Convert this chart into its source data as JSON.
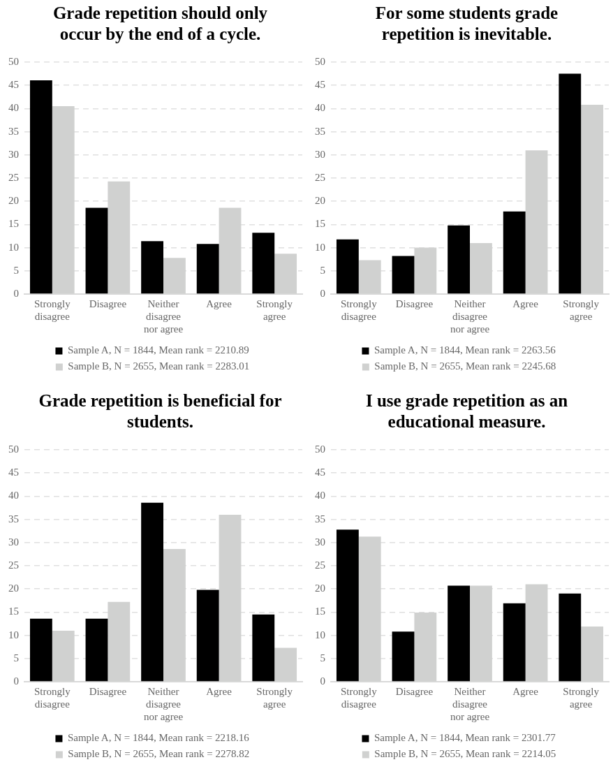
{
  "chart_data": [
    {
      "type": "bar",
      "title": "Grade repetition should only occur by the end of a cycle.",
      "categories": [
        "Strongly disagree",
        "Disagree",
        "Neither disagree nor agree",
        "Agree",
        "Strongly agree"
      ],
      "series": [
        {
          "name": "Sample A, N = 1844, Mean rank = 2210.89",
          "color": "#000000",
          "values": [
            46.1,
            18.6,
            11.4,
            10.8,
            13.2
          ]
        },
        {
          "name": "Sample B, N = 2655, Mean rank = 2283.01",
          "color": "#d0d1d0",
          "values": [
            40.5,
            24.3,
            7.8,
            18.6,
            8.7
          ]
        }
      ],
      "ylim": [
        0,
        50
      ],
      "yticks": [
        0,
        5,
        10,
        15,
        20,
        25,
        30,
        35,
        40,
        45,
        50
      ],
      "grid": "y",
      "legend": "bottom"
    },
    {
      "type": "bar",
      "title": "For some students grade repetition is inevitable.",
      "categories": [
        "Strongly disagree",
        "Disagree",
        "Neither disagree nor agree",
        "Agree",
        "Strongly agree"
      ],
      "series": [
        {
          "name": "Sample A, N = 1844, Mean rank = 2263.56",
          "color": "#000000",
          "values": [
            11.8,
            8.2,
            14.8,
            17.8,
            47.5
          ]
        },
        {
          "name": "Sample B, N = 2655, Mean rank = 2245.68",
          "color": "#d0d1d0",
          "values": [
            7.3,
            10.0,
            11.0,
            31.0,
            40.8
          ]
        }
      ],
      "ylim": [
        0,
        50
      ],
      "yticks": [
        0,
        5,
        10,
        15,
        20,
        25,
        30,
        35,
        40,
        45,
        50
      ],
      "grid": "y",
      "legend": "bottom"
    },
    {
      "type": "bar",
      "title": "Grade repetition is beneficial for students.",
      "categories": [
        "Strongly disagree",
        "Disagree",
        "Neither disagree nor agree",
        "Agree",
        "Strongly agree"
      ],
      "series": [
        {
          "name": "Sample A, N = 1844, Mean rank = 2218.16",
          "color": "#000000",
          "values": [
            13.6,
            13.6,
            38.6,
            19.8,
            14.5
          ]
        },
        {
          "name": "Sample B, N = 2655, Mean rank = 2278.82",
          "color": "#d0d1d0",
          "values": [
            11.0,
            17.2,
            28.6,
            36.0,
            7.3
          ]
        }
      ],
      "ylim": [
        0,
        50
      ],
      "yticks": [
        0,
        5,
        10,
        15,
        20,
        25,
        30,
        35,
        40,
        45,
        50
      ],
      "grid": "y",
      "legend": "bottom"
    },
    {
      "type": "bar",
      "title": "I use grade repetition as an educational measure.",
      "categories": [
        "Strongly disagree",
        "Disagree",
        "Neither disagree nor agree",
        "Agree",
        "Strongly agree"
      ],
      "series": [
        {
          "name": "Sample A, N = 1844, Mean rank = 2301.77",
          "color": "#000000",
          "values": [
            32.8,
            10.8,
            20.7,
            16.9,
            19.0
          ]
        },
        {
          "name": "Sample B, N = 2655, Mean rank = 2214.05",
          "color": "#d0d1d0",
          "values": [
            31.3,
            14.9,
            20.7,
            21.0,
            11.9
          ]
        }
      ],
      "ylim": [
        0,
        50
      ],
      "yticks": [
        0,
        5,
        10,
        15,
        20,
        25,
        30,
        35,
        40,
        45,
        50
      ],
      "grid": "y",
      "legend": "bottom"
    }
  ]
}
